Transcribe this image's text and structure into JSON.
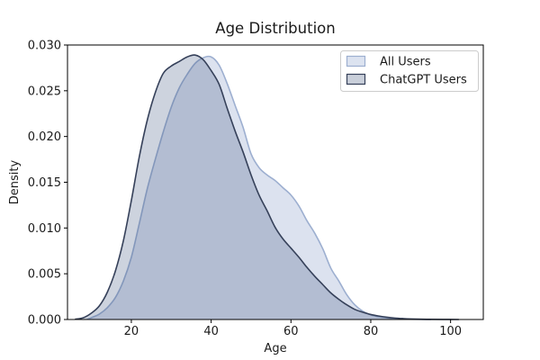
{
  "figure": {
    "title": "Age Distribution",
    "background_color": "#ffffff",
    "spine_color": "#000000",
    "text_color": "#1a1a1a"
  },
  "chart_data": {
    "type": "area",
    "subtype": "kde-density",
    "title": "Age Distribution",
    "xlabel": "Age",
    "ylabel": "Density",
    "xlim": [
      4,
      108.2
    ],
    "ylim": [
      0,
      0.03
    ],
    "grid": false,
    "x_ticks": [
      {
        "value": 20,
        "label": "20"
      },
      {
        "value": 40,
        "label": "40"
      },
      {
        "value": 60,
        "label": "60"
      },
      {
        "value": 80,
        "label": "80"
      },
      {
        "value": 100,
        "label": "100"
      }
    ],
    "y_ticks": [
      {
        "value": 0.0,
        "label": "0.000"
      },
      {
        "value": 0.005,
        "label": "0.005"
      },
      {
        "value": 0.01,
        "label": "0.010"
      },
      {
        "value": 0.015,
        "label": "0.015"
      },
      {
        "value": 0.02,
        "label": "0.020"
      },
      {
        "value": 0.025,
        "label": "0.025"
      },
      {
        "value": 0.03,
        "label": "0.030"
      }
    ],
    "legend": {
      "position": "upper right",
      "border_color": "#cccccc",
      "background_color": "#ffffff"
    },
    "series": [
      {
        "name": "All Users",
        "line_color": "#9dafd0",
        "fill_color": "rgba(115,139,191,0.25)",
        "swatch_fill": "#dce3f0",
        "points": [
          [
            9,
            3e-05
          ],
          [
            10,
            0.0002
          ],
          [
            12,
            0.0006
          ],
          [
            14,
            0.0013
          ],
          [
            16,
            0.0024
          ],
          [
            18,
            0.0042
          ],
          [
            20,
            0.0068
          ],
          [
            22,
            0.0105
          ],
          [
            24,
            0.0143
          ],
          [
            26,
            0.0175
          ],
          [
            28,
            0.0205
          ],
          [
            30,
            0.0232
          ],
          [
            32,
            0.0253
          ],
          [
            34,
            0.0268
          ],
          [
            36,
            0.028
          ],
          [
            38,
            0.0286
          ],
          [
            40,
            0.0287
          ],
          [
            42,
            0.0278
          ],
          [
            44,
            0.0258
          ],
          [
            46,
            0.0234
          ],
          [
            48,
            0.021
          ],
          [
            50,
            0.0181
          ],
          [
            52,
            0.0166
          ],
          [
            54,
            0.0158
          ],
          [
            56,
            0.0152
          ],
          [
            58,
            0.0144
          ],
          [
            60,
            0.0136
          ],
          [
            62,
            0.0124
          ],
          [
            64,
            0.0108
          ],
          [
            66,
            0.0094
          ],
          [
            68,
            0.0077
          ],
          [
            70,
            0.0056
          ],
          [
            72,
            0.0042
          ],
          [
            74,
            0.0027
          ],
          [
            76,
            0.0016
          ],
          [
            78,
            0.0009
          ],
          [
            80,
            0.0005
          ],
          [
            82,
            0.0003
          ],
          [
            84,
            0.00018
          ],
          [
            86,
            0.0001
          ],
          [
            88,
            6e-05
          ],
          [
            90,
            3e-05
          ],
          [
            93,
            1e-05
          ],
          [
            95,
            0
          ]
        ]
      },
      {
        "name": "ChatGPT Users",
        "line_color": "#36415a",
        "fill_color": "rgba(55,79,123,0.25)",
        "swatch_fill": "#c9cfda",
        "points": [
          [
            6,
            3e-05
          ],
          [
            8,
            0.0002
          ],
          [
            10,
            0.0007
          ],
          [
            12,
            0.0015
          ],
          [
            14,
            0.003
          ],
          [
            16,
            0.0053
          ],
          [
            18,
            0.0086
          ],
          [
            20,
            0.013
          ],
          [
            22,
            0.0178
          ],
          [
            24,
            0.0218
          ],
          [
            26,
            0.0248
          ],
          [
            28,
            0.0269
          ],
          [
            30,
            0.0277
          ],
          [
            32,
            0.0282
          ],
          [
            34,
            0.0287
          ],
          [
            36,
            0.0289
          ],
          [
            38,
            0.0284
          ],
          [
            40,
            0.0272
          ],
          [
            42,
            0.0257
          ],
          [
            44,
            0.0231
          ],
          [
            46,
            0.0206
          ],
          [
            48,
            0.0183
          ],
          [
            50,
            0.0158
          ],
          [
            52,
            0.0136
          ],
          [
            54,
            0.0119
          ],
          [
            56,
            0.0101
          ],
          [
            58,
            0.0088
          ],
          [
            60,
            0.0078
          ],
          [
            62,
            0.0068
          ],
          [
            64,
            0.0057
          ],
          [
            66,
            0.0047
          ],
          [
            68,
            0.0038
          ],
          [
            70,
            0.0029
          ],
          [
            72,
            0.0022
          ],
          [
            74,
            0.0016
          ],
          [
            76,
            0.0011
          ],
          [
            78,
            0.0008
          ],
          [
            80,
            0.00055
          ],
          [
            82,
            0.00038
          ],
          [
            84,
            0.00025
          ],
          [
            86,
            0.00016
          ],
          [
            88,
            0.0001
          ],
          [
            90,
            6e-05
          ],
          [
            94,
            2e-05
          ],
          [
            98,
            1e-05
          ],
          [
            102,
            0
          ]
        ]
      }
    ]
  }
}
